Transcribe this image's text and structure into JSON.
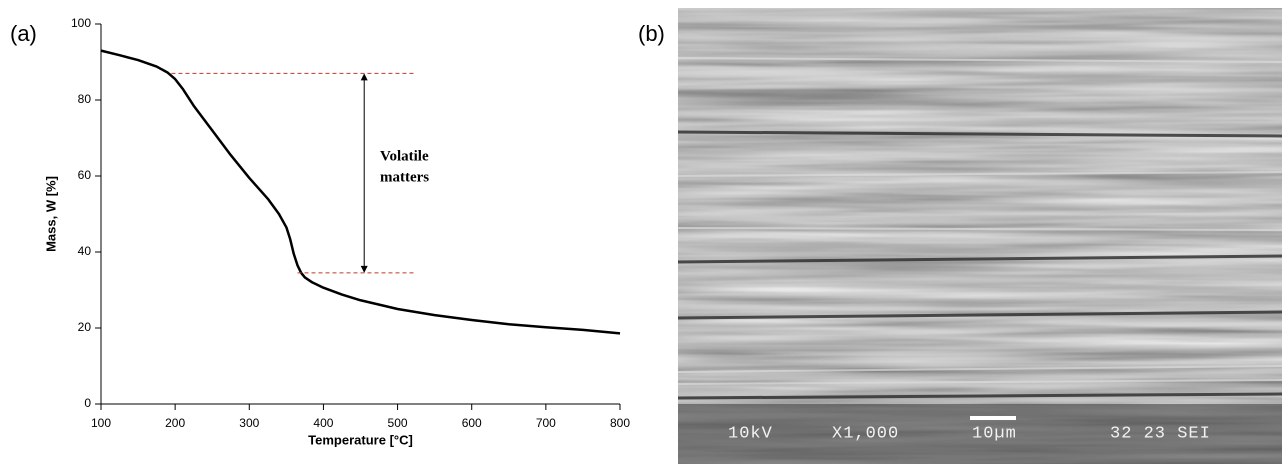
{
  "panel_labels": [
    "(a)",
    "(b)"
  ],
  "chart_data": {
    "type": "line",
    "x_label": "Temperature [°C]",
    "y_label": "Mass, W [%]",
    "x": [
      100,
      125,
      150,
      175,
      190,
      200,
      210,
      225,
      250,
      275,
      300,
      325,
      340,
      350,
      355,
      360,
      365,
      370,
      375,
      385,
      400,
      425,
      450,
      500,
      550,
      600,
      650,
      700,
      750,
      800
    ],
    "values": [
      93,
      91.8,
      90.5,
      88.8,
      87.2,
      85.5,
      83,
      78.5,
      72,
      65.5,
      59.5,
      54,
      50,
      46.5,
      43.5,
      39.5,
      36.5,
      34.5,
      33.3,
      32,
      30.6,
      28.8,
      27.3,
      25,
      23.4,
      22.1,
      21,
      20.2,
      19.5,
      18.6
    ],
    "color": "#000000",
    "xlim": [
      100,
      800
    ],
    "xticks": [
      100,
      200,
      300,
      400,
      500,
      600,
      700,
      800
    ],
    "ylim": [
      0,
      100
    ],
    "yticks": [
      0,
      20,
      40,
      60,
      80,
      100
    ],
    "annotation": {
      "text": [
        "Volatile",
        "matters"
      ],
      "upper": 87,
      "lower": 34.5,
      "arrow_x": 455,
      "upper_span": [
        195,
        525
      ],
      "lower_span": [
        365,
        525
      ],
      "line_color": "#c0392b"
    }
  },
  "image": {
    "labels": [
      "10kV",
      "X1,000",
      "10µm",
      "32 23 SEI"
    ]
  }
}
